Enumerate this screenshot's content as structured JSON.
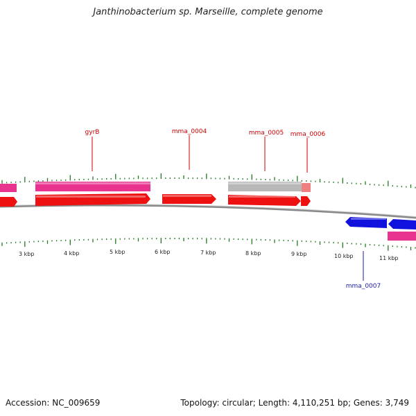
{
  "title": "Janthinobacterium sp. Marseille, complete genome",
  "footer": {
    "accession": "Accession: NC_009659",
    "summary": "Topology: circular; Length: 4,110,251 bp; Genes: 3,749"
  },
  "colors": {
    "backbone": "#8a8a8a",
    "tick": "#1f7a1f",
    "forward_label": "#cc0000",
    "reverse_label": "#1a1aaa",
    "cds": "#ee1111",
    "gene": "#e8338f",
    "reverse_cds": "#1111dd",
    "gray_feature": "#b8b8b8",
    "salmon_feature": "#f08080"
  },
  "scale_labels": [
    "3 kbp",
    "4 kbp",
    "5 kbp",
    "6 kbp",
    "7 kbp",
    "8 kbp",
    "9 kbp",
    "10 kbp",
    "11 kbp"
  ],
  "gene_labels": [
    {
      "text": "gyrB",
      "strand": "forward"
    },
    {
      "text": "mma_0004",
      "strand": "forward"
    },
    {
      "text": "mma_0005",
      "strand": "forward"
    },
    {
      "text": "mma_0006",
      "strand": "forward"
    },
    {
      "text": "mma_0007",
      "strand": "reverse"
    }
  ]
}
